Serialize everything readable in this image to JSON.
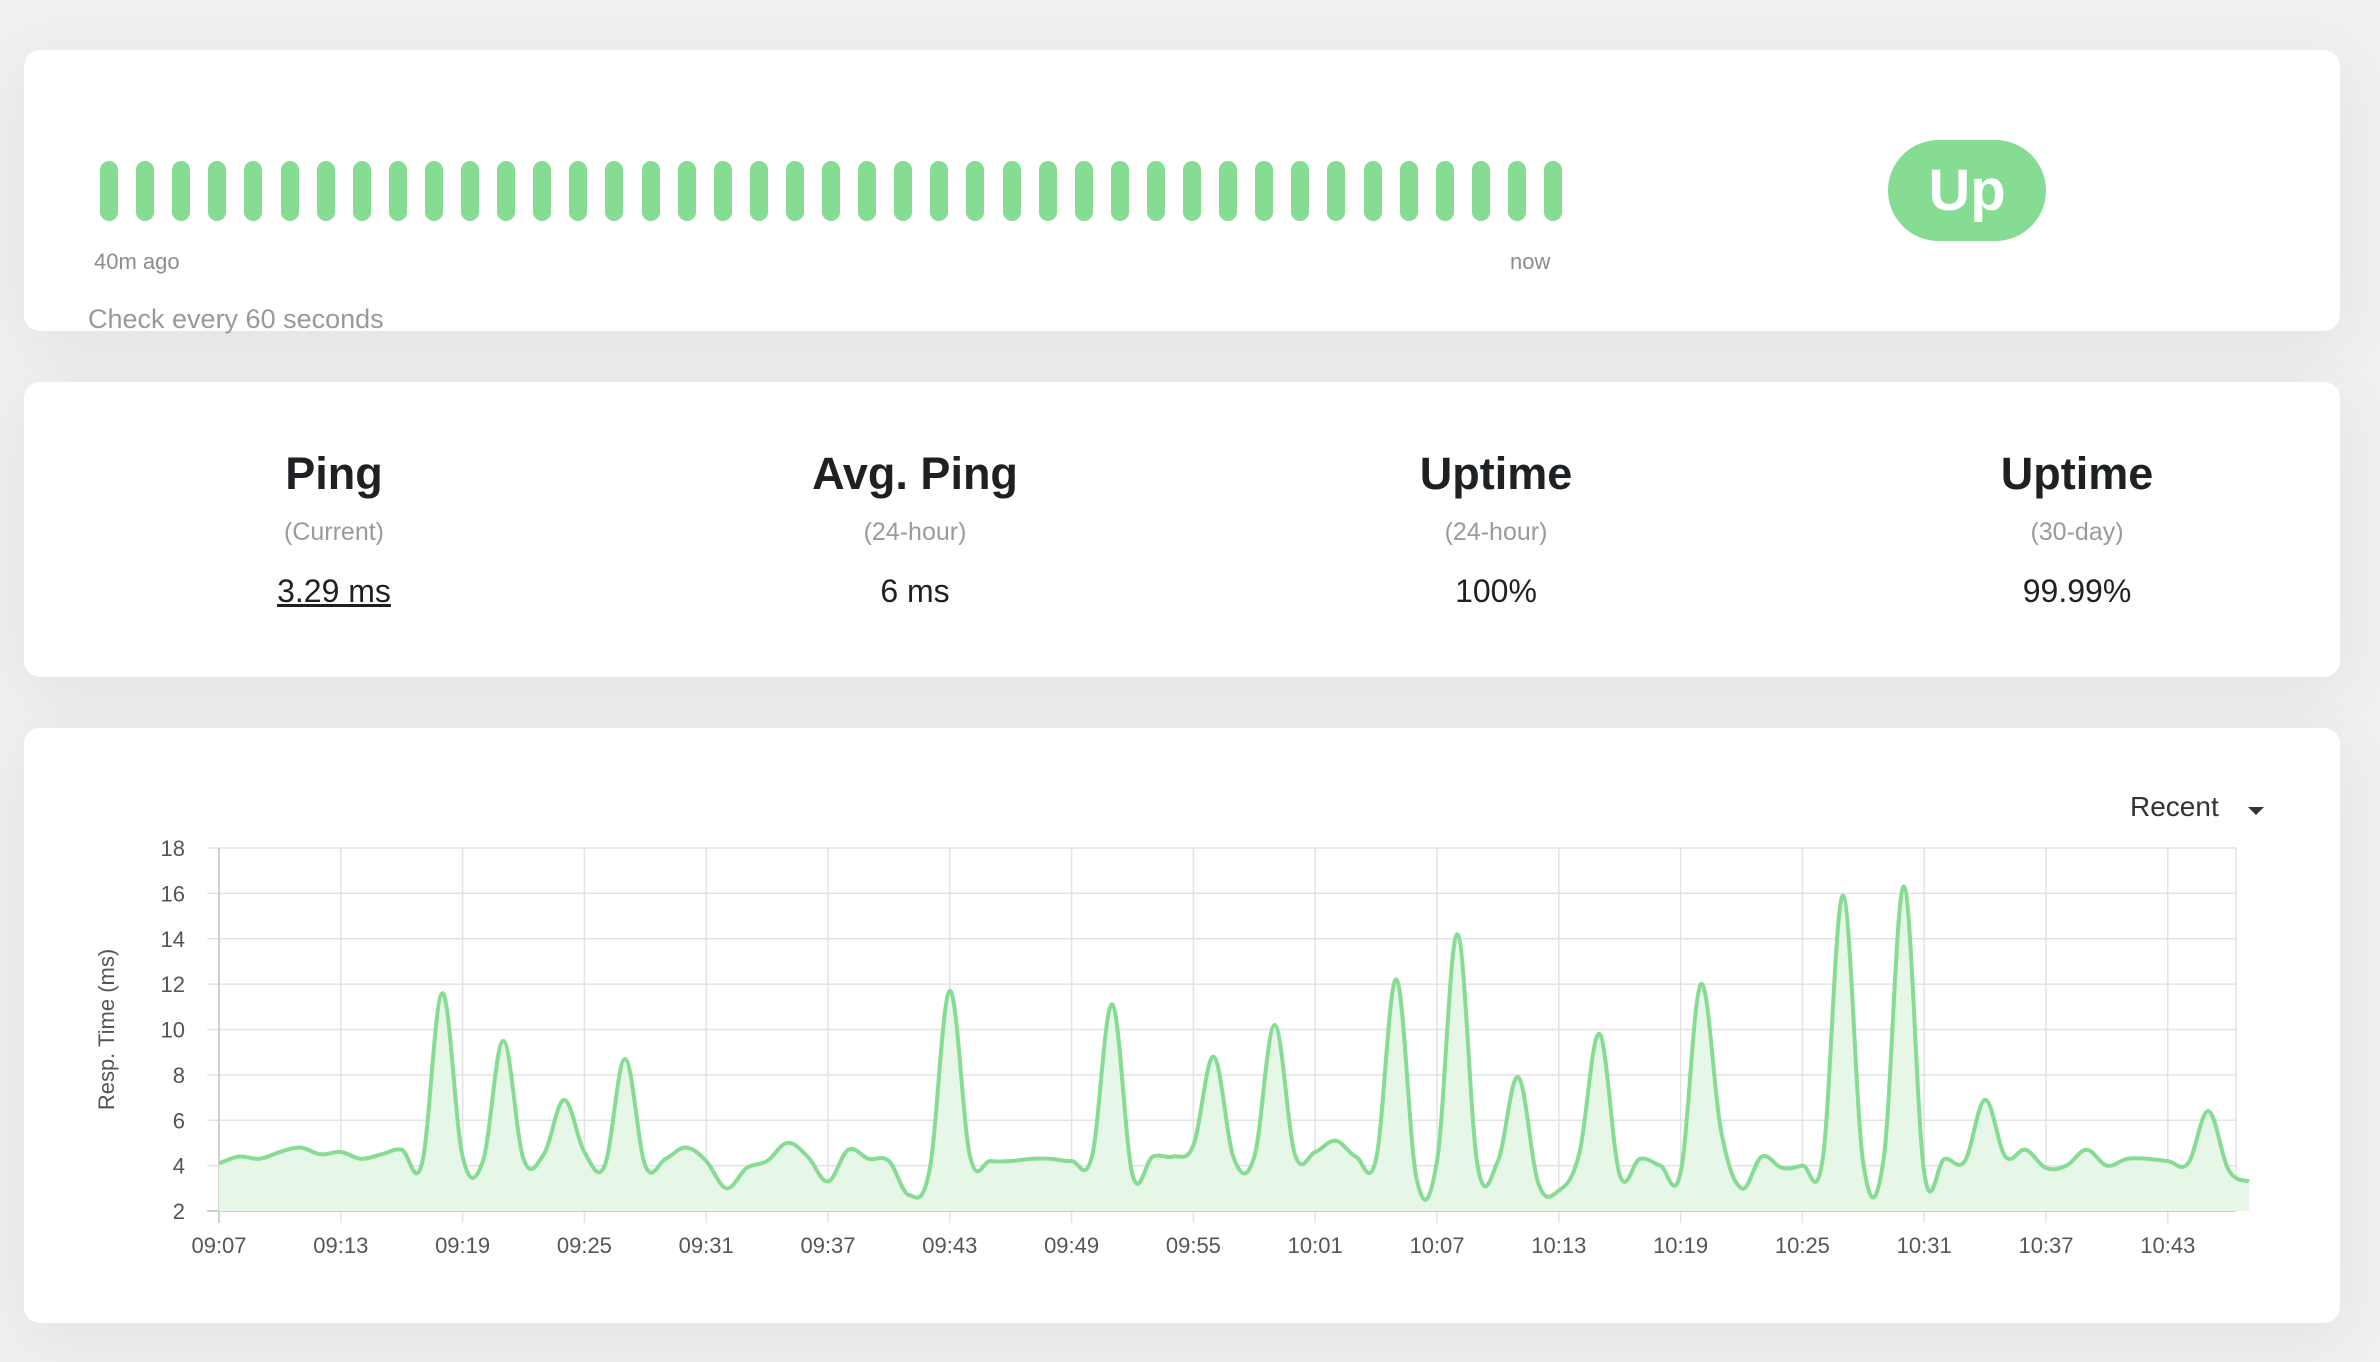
{
  "heartbeat": {
    "count": 41,
    "beat_status": "up",
    "start_label": "40m ago",
    "end_label": "now",
    "interval_text": "Check every 60 seconds",
    "status": "Up"
  },
  "stats": [
    {
      "title": "Ping",
      "subtitle": "(Current)",
      "value": "3.29 ms"
    },
    {
      "title": "Avg. Ping",
      "subtitle": "(24-hour)",
      "value": "6 ms"
    },
    {
      "title": "Uptime",
      "subtitle": "(24-hour)",
      "value": "100%"
    },
    {
      "title": "Uptime",
      "subtitle": "(30-day)",
      "value": "99.99%"
    }
  ],
  "chart": {
    "period": "Recent"
  },
  "colors": {
    "accent": "#86dc93",
    "fill": "#e6f7e8",
    "grid": "#e3e3e3"
  },
  "chart_data": {
    "type": "area",
    "ylabel": "Resp. Time (ms)",
    "ylim": [
      2,
      18
    ],
    "yticks": [
      2,
      4,
      6,
      8,
      10,
      12,
      14,
      16,
      18
    ],
    "xticks": [
      "09:07",
      "09:13",
      "09:19",
      "09:25",
      "09:31",
      "09:37",
      "09:43",
      "09:49",
      "09:55",
      "10:01",
      "10:07",
      "10:13",
      "10:19",
      "10:25",
      "10:31",
      "10:37",
      "10:43"
    ],
    "xlim_minutes": [
      "09:07",
      "10:47"
    ],
    "points": [
      [
        "09:07",
        4.1
      ],
      [
        "09:08",
        4.4
      ],
      [
        "09:09",
        4.3
      ],
      [
        "09:10",
        4.6
      ],
      [
        "09:11",
        4.8
      ],
      [
        "09:12",
        4.5
      ],
      [
        "09:13",
        4.6
      ],
      [
        "09:14",
        4.3
      ],
      [
        "09:15",
        4.5
      ],
      [
        "09:16",
        4.7
      ],
      [
        "09:17",
        4.1
      ],
      [
        "09:18",
        11.6
      ],
      [
        "09:19",
        4.4
      ],
      [
        "09:20",
        4.2
      ],
      [
        "09:21",
        9.5
      ],
      [
        "09:22",
        4.3
      ],
      [
        "09:23",
        4.5
      ],
      [
        "09:24",
        6.9
      ],
      [
        "09:25",
        4.6
      ],
      [
        "09:26",
        4.0
      ],
      [
        "09:27",
        8.7
      ],
      [
        "09:28",
        4.0
      ],
      [
        "09:29",
        4.3
      ],
      [
        "09:30",
        4.8
      ],
      [
        "09:31",
        4.2
      ],
      [
        "09:32",
        3.0
      ],
      [
        "09:33",
        3.9
      ],
      [
        "09:34",
        4.2
      ],
      [
        "09:35",
        5.0
      ],
      [
        "09:36",
        4.4
      ],
      [
        "09:37",
        3.3
      ],
      [
        "09:38",
        4.7
      ],
      [
        "09:39",
        4.3
      ],
      [
        "09:40",
        4.2
      ],
      [
        "09:41",
        2.7
      ],
      [
        "09:42",
        3.8
      ],
      [
        "09:43",
        11.7
      ],
      [
        "09:44",
        4.4
      ],
      [
        "09:45",
        4.2
      ],
      [
        "09:46",
        4.2
      ],
      [
        "09:47",
        4.3
      ],
      [
        "09:48",
        4.3
      ],
      [
        "09:49",
        4.2
      ],
      [
        "09:50",
        4.4
      ],
      [
        "09:51",
        11.1
      ],
      [
        "09:52",
        3.6
      ],
      [
        "09:53",
        4.4
      ],
      [
        "09:54",
        4.4
      ],
      [
        "09:55",
        4.9
      ],
      [
        "09:56",
        8.8
      ],
      [
        "09:57",
        4.3
      ],
      [
        "09:58",
        4.4
      ],
      [
        "09:59",
        10.2
      ],
      [
        "10:00",
        4.5
      ],
      [
        "10:01",
        4.6
      ],
      [
        "10:02",
        5.1
      ],
      [
        "10:03",
        4.4
      ],
      [
        "10:04",
        4.3
      ],
      [
        "10:05",
        12.2
      ],
      [
        "10:06",
        3.4
      ],
      [
        "10:07",
        4.2
      ],
      [
        "10:08",
        14.2
      ],
      [
        "10:09",
        4.0
      ],
      [
        "10:10",
        4.2
      ],
      [
        "10:11",
        7.9
      ],
      [
        "10:12",
        3.2
      ],
      [
        "10:13",
        2.9
      ],
      [
        "10:14",
        4.5
      ],
      [
        "10:15",
        9.8
      ],
      [
        "10:16",
        3.6
      ],
      [
        "10:17",
        4.3
      ],
      [
        "10:18",
        4.0
      ],
      [
        "10:19",
        3.7
      ],
      [
        "10:20",
        12.0
      ],
      [
        "10:21",
        5.5
      ],
      [
        "10:22",
        3.0
      ],
      [
        "10:23",
        4.4
      ],
      [
        "10:24",
        3.9
      ],
      [
        "10:25",
        4.0
      ],
      [
        "10:26",
        4.3
      ],
      [
        "10:27",
        15.9
      ],
      [
        "10:28",
        4.1
      ],
      [
        "10:29",
        4.3
      ],
      [
        "10:30",
        16.3
      ],
      [
        "10:31",
        3.7
      ],
      [
        "10:32",
        4.3
      ],
      [
        "10:33",
        4.2
      ],
      [
        "10:34",
        6.9
      ],
      [
        "10:35",
        4.4
      ],
      [
        "10:36",
        4.7
      ],
      [
        "10:37",
        3.9
      ],
      [
        "10:38",
        4.0
      ],
      [
        "10:39",
        4.7
      ],
      [
        "10:40",
        4.0
      ],
      [
        "10:41",
        4.3
      ],
      [
        "10:42",
        4.3
      ],
      [
        "10:43",
        4.2
      ],
      [
        "10:44",
        4.1
      ],
      [
        "10:45",
        6.4
      ],
      [
        "10:46",
        3.8
      ],
      [
        "10:47",
        3.3
      ]
    ]
  }
}
